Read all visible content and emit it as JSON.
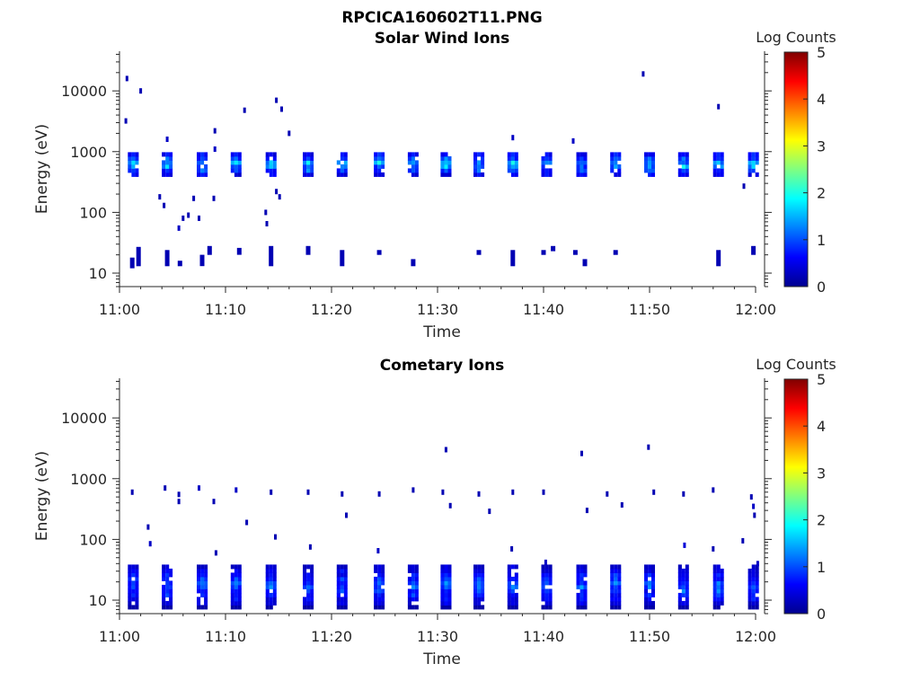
{
  "figure_title": "RPCICA160602T11.PNG",
  "colormap_stops": [
    "#00008f",
    "#0000ff",
    "#0080ff",
    "#00ffff",
    "#80ff80",
    "#ffff00",
    "#ff8000",
    "#ff0000",
    "#800000"
  ],
  "chart_data": [
    {
      "type": "heatmap",
      "title": "Solar Wind Ions",
      "xlabel": "Time",
      "ylabel": "Energy (eV)",
      "x_ticks": [
        "11:00",
        "11:10",
        "11:20",
        "11:30",
        "11:40",
        "11:50",
        "12:00"
      ],
      "xlim": [
        "11:00",
        "12:00"
      ],
      "y_scale": "log",
      "y_ticks": [
        "10",
        "100",
        "1000",
        "10000"
      ],
      "ylim": [
        6,
        45000
      ],
      "colorbar": {
        "label": "Log Counts",
        "ticks": [
          "0",
          "1",
          "2",
          "3",
          "4",
          "5"
        ],
        "range": [
          0,
          5
        ]
      },
      "sweep_times_min": [
        1.3,
        4.5,
        7.8,
        11.0,
        14.3,
        17.8,
        21.0,
        24.5,
        27.7,
        30.8,
        33.9,
        37.1,
        40.3,
        43.6,
        46.8,
        50.0,
        53.2,
        56.5,
        59.8
      ],
      "band_energy_ev": [
        400,
        850
      ],
      "band_peak_log_counts": 1.8,
      "band_energy_min_ev": 11,
      "sparse_hits": [
        {
          "t": 0.7,
          "e": 16000,
          "c": 0.2
        },
        {
          "t": 2.0,
          "e": 10000,
          "c": 0.2
        },
        {
          "t": 0.6,
          "e": 3200,
          "c": 0.2
        },
        {
          "t": 4.5,
          "e": 1600,
          "c": 0.3
        },
        {
          "t": 9.0,
          "e": 2200,
          "c": 0.2
        },
        {
          "t": 11.8,
          "e": 4800,
          "c": 0.2
        },
        {
          "t": 14.8,
          "e": 7000,
          "c": 0.2
        },
        {
          "t": 15.3,
          "e": 5000,
          "c": 0.2
        },
        {
          "t": 16.0,
          "e": 2000,
          "c": 0.2
        },
        {
          "t": 3.8,
          "e": 180,
          "c": 0.2
        },
        {
          "t": 4.2,
          "e": 130,
          "c": 0.2
        },
        {
          "t": 5.6,
          "e": 55,
          "c": 0.3
        },
        {
          "t": 6.0,
          "e": 80,
          "c": 0.2
        },
        {
          "t": 6.5,
          "e": 90,
          "c": 0.2
        },
        {
          "t": 7.0,
          "e": 170,
          "c": 0.2
        },
        {
          "t": 7.5,
          "e": 80,
          "c": 0.2
        },
        {
          "t": 8.9,
          "e": 170,
          "c": 0.2
        },
        {
          "t": 13.8,
          "e": 100,
          "c": 0.2
        },
        {
          "t": 13.9,
          "e": 65,
          "c": 0.2
        },
        {
          "t": 14.8,
          "e": 220,
          "c": 0.2
        },
        {
          "t": 15.1,
          "e": 180,
          "c": 0.2
        },
        {
          "t": 49.4,
          "e": 19000,
          "c": 0.2
        },
        {
          "t": 56.5,
          "e": 5500,
          "c": 0.2
        },
        {
          "t": 58.9,
          "e": 270,
          "c": 0.2
        },
        {
          "t": 9.0,
          "e": 1100,
          "c": 0.3
        },
        {
          "t": 37.1,
          "e": 1700,
          "c": 0.3
        },
        {
          "t": 42.8,
          "e": 1500,
          "c": 0.3
        }
      ],
      "low_energy_hits": [
        {
          "t": 1.2,
          "e1": 12,
          "e2": 18
        },
        {
          "t": 1.8,
          "e1": 13,
          "e2": 27
        },
        {
          "t": 4.5,
          "e1": 13,
          "e2": 24
        },
        {
          "t": 5.7,
          "e1": 13,
          "e2": 16
        },
        {
          "t": 7.8,
          "e1": 13,
          "e2": 20
        },
        {
          "t": 8.5,
          "e1": 20,
          "e2": 28
        },
        {
          "t": 11.3,
          "e1": 20,
          "e2": 26
        },
        {
          "t": 14.3,
          "e1": 13,
          "e2": 28
        },
        {
          "t": 17.8,
          "e1": 20,
          "e2": 28
        },
        {
          "t": 21.0,
          "e1": 13,
          "e2": 24
        },
        {
          "t": 24.5,
          "e1": 20,
          "e2": 24
        },
        {
          "t": 27.7,
          "e1": 13,
          "e2": 17
        },
        {
          "t": 33.9,
          "e1": 20,
          "e2": 24
        },
        {
          "t": 37.1,
          "e1": 13,
          "e2": 24
        },
        {
          "t": 40.0,
          "e1": 20,
          "e2": 24
        },
        {
          "t": 40.9,
          "e1": 23,
          "e2": 28
        },
        {
          "t": 43.0,
          "e1": 20,
          "e2": 24
        },
        {
          "t": 43.9,
          "e1": 13,
          "e2": 17
        },
        {
          "t": 46.8,
          "e1": 20,
          "e2": 24
        },
        {
          "t": 56.5,
          "e1": 13,
          "e2": 24
        },
        {
          "t": 59.8,
          "e1": 20,
          "e2": 28
        }
      ]
    },
    {
      "type": "heatmap",
      "title": "Cometary Ions",
      "xlabel": "Time",
      "ylabel": "Energy (eV)",
      "x_ticks": [
        "11:00",
        "11:10",
        "11:20",
        "11:30",
        "11:40",
        "11:50",
        "12:00"
      ],
      "xlim": [
        "11:00",
        "12:00"
      ],
      "y_scale": "log",
      "y_ticks": [
        "10",
        "100",
        "1000",
        "10000"
      ],
      "ylim": [
        6,
        45000
      ],
      "colorbar": {
        "label": "Log Counts",
        "ticks": [
          "0",
          "1",
          "2",
          "3",
          "4",
          "5"
        ],
        "range": [
          0,
          5
        ]
      },
      "sweep_times_min": [
        1.3,
        4.5,
        7.8,
        11.0,
        14.3,
        17.8,
        21.0,
        24.5,
        27.7,
        30.8,
        33.9,
        37.1,
        40.3,
        43.6,
        46.8,
        50.0,
        53.2,
        56.5,
        59.8
      ],
      "band_energy_ev": [
        8,
        32
      ],
      "band_peak_log_counts": 1.3,
      "band_energy_min_ev": 8,
      "sparse_hits": [
        {
          "t": 1.2,
          "e": 600,
          "c": 0.2
        },
        {
          "t": 4.3,
          "e": 700,
          "c": 0.2
        },
        {
          "t": 5.6,
          "e": 550,
          "c": 0.2
        },
        {
          "t": 7.5,
          "e": 700,
          "c": 0.3
        },
        {
          "t": 11.0,
          "e": 650,
          "c": 0.3
        },
        {
          "t": 14.3,
          "e": 600,
          "c": 0.2
        },
        {
          "t": 17.8,
          "e": 600,
          "c": 0.2
        },
        {
          "t": 21.0,
          "e": 560,
          "c": 0.2
        },
        {
          "t": 24.5,
          "e": 560,
          "c": 0.2
        },
        {
          "t": 27.7,
          "e": 650,
          "c": 0.2
        },
        {
          "t": 30.8,
          "e": 3000,
          "c": 0.2
        },
        {
          "t": 30.5,
          "e": 600,
          "c": 0.2
        },
        {
          "t": 33.9,
          "e": 560,
          "c": 0.2
        },
        {
          "t": 37.1,
          "e": 600,
          "c": 0.2
        },
        {
          "t": 40.0,
          "e": 600,
          "c": 0.2
        },
        {
          "t": 43.6,
          "e": 2600,
          "c": 0.2
        },
        {
          "t": 44.1,
          "e": 300,
          "c": 0.2
        },
        {
          "t": 46.0,
          "e": 560,
          "c": 0.2
        },
        {
          "t": 47.4,
          "e": 370,
          "c": 0.2
        },
        {
          "t": 49.9,
          "e": 3300,
          "c": 0.2
        },
        {
          "t": 50.4,
          "e": 600,
          "c": 0.2
        },
        {
          "t": 53.2,
          "e": 560,
          "c": 0.2
        },
        {
          "t": 56.0,
          "e": 650,
          "c": 0.2
        },
        {
          "t": 59.6,
          "e": 500,
          "c": 0.2
        },
        {
          "t": 2.7,
          "e": 160,
          "c": 0.2
        },
        {
          "t": 2.9,
          "e": 85,
          "c": 0.3
        },
        {
          "t": 5.6,
          "e": 420,
          "c": 0.2
        },
        {
          "t": 8.9,
          "e": 420,
          "c": 0.2
        },
        {
          "t": 9.1,
          "e": 60,
          "c": 0.2
        },
        {
          "t": 12.0,
          "e": 190,
          "c": 0.2
        },
        {
          "t": 14.7,
          "e": 110,
          "c": 0.2
        },
        {
          "t": 18.0,
          "e": 75,
          "c": 0.2
        },
        {
          "t": 21.4,
          "e": 250,
          "c": 0.2
        },
        {
          "t": 24.4,
          "e": 65,
          "c": 0.3
        },
        {
          "t": 31.2,
          "e": 360,
          "c": 0.2
        },
        {
          "t": 34.9,
          "e": 290,
          "c": 0.2
        },
        {
          "t": 37.0,
          "e": 70,
          "c": 0.2
        },
        {
          "t": 40.2,
          "e": 42,
          "c": 0.3
        },
        {
          "t": 53.3,
          "e": 80,
          "c": 0.4
        },
        {
          "t": 56.0,
          "e": 70,
          "c": 0.2
        },
        {
          "t": 58.8,
          "e": 95,
          "c": 0.2
        },
        {
          "t": 59.8,
          "e": 350,
          "c": 0.3
        },
        {
          "t": 59.9,
          "e": 250,
          "c": 0.2
        },
        {
          "t": 60.2,
          "e": 40,
          "c": 0.3
        }
      ],
      "low_energy_hits": []
    }
  ]
}
